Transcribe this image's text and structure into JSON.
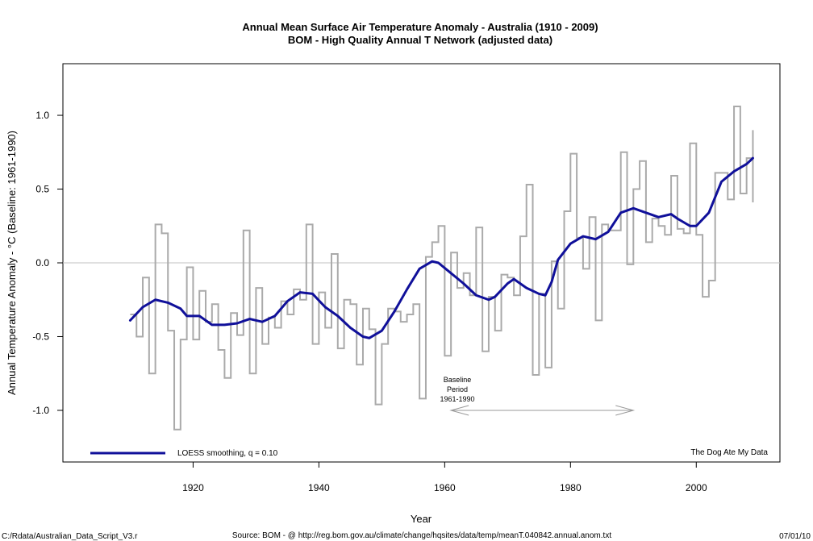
{
  "chart_data": {
    "type": "line",
    "title": "Annual Mean Surface Air Temperature Anomaly - Australia (1910 - 2009)",
    "subtitle": "BOM - High Quality Annual T Network (adjusted data)",
    "xlabel": "Year",
    "ylabel": "Annual Temperature Anomaly - °C (Baseline: 1961-1990)",
    "xlim": [
      1899.3,
      2013.3
    ],
    "ylim": [
      -1.35,
      1.35
    ],
    "x_ticks": [
      1920,
      1940,
      1960,
      1980,
      2000
    ],
    "y_ticks": [
      -1.0,
      -0.5,
      0.0,
      0.5,
      1.0
    ],
    "x_tick_labels": [
      "1920",
      "1940",
      "1960",
      "1980",
      "2000"
    ],
    "y_tick_labels": [
      "-1.0",
      "-0.5",
      "0.0",
      "0.5",
      "1.0"
    ],
    "grid": false,
    "reference_line_y": 0.0,
    "series": [
      {
        "style": "step",
        "color": "#aaaaaa",
        "x": [
          1910,
          1911,
          1912,
          1913,
          1914,
          1915,
          1916,
          1917,
          1918,
          1919,
          1920,
          1921,
          1922,
          1923,
          1924,
          1925,
          1926,
          1927,
          1928,
          1929,
          1930,
          1931,
          1932,
          1933,
          1934,
          1935,
          1936,
          1937,
          1938,
          1939,
          1940,
          1941,
          1942,
          1943,
          1944,
          1945,
          1946,
          1947,
          1948,
          1949,
          1950,
          1951,
          1952,
          1953,
          1954,
          1955,
          1956,
          1957,
          1958,
          1959,
          1960,
          1961,
          1962,
          1963,
          1964,
          1965,
          1966,
          1967,
          1968,
          1969,
          1970,
          1971,
          1972,
          1973,
          1974,
          1975,
          1976,
          1977,
          1978,
          1979,
          1980,
          1981,
          1982,
          1983,
          1984,
          1985,
          1986,
          1987,
          1988,
          1989,
          1990,
          1991,
          1992,
          1993,
          1994,
          1995,
          1996,
          1997,
          1998,
          1999,
          2000,
          2001,
          2002,
          2003,
          2004,
          2005,
          2006,
          2007,
          2008,
          2009
        ],
        "values": [
          -0.35,
          -0.5,
          -0.1,
          -0.75,
          0.26,
          0.2,
          -0.46,
          -1.13,
          -0.52,
          -0.03,
          -0.52,
          -0.19,
          -0.4,
          -0.28,
          -0.59,
          -0.78,
          -0.34,
          -0.49,
          0.22,
          -0.75,
          -0.17,
          -0.55,
          -0.37,
          -0.44,
          -0.26,
          -0.35,
          -0.18,
          -0.25,
          0.26,
          -0.55,
          -0.2,
          -0.44,
          0.06,
          -0.58,
          -0.25,
          -0.28,
          -0.69,
          -0.31,
          -0.45,
          -0.96,
          -0.55,
          -0.31,
          -0.33,
          -0.4,
          -0.35,
          -0.28,
          -0.92,
          0.04,
          0.14,
          0.25,
          -0.63,
          0.07,
          -0.17,
          -0.07,
          -0.22,
          0.24,
          -0.6,
          -0.23,
          -0.46,
          -0.08,
          -0.1,
          -0.22,
          0.18,
          0.53,
          -0.76,
          -0.21,
          -0.71,
          0.01,
          -0.31,
          0.35,
          0.74,
          0.17,
          -0.04,
          0.31,
          -0.39,
          0.26,
          0.22,
          0.22,
          0.75,
          -0.01,
          0.5,
          0.69,
          0.14,
          0.3,
          0.25,
          0.19,
          0.59,
          0.23,
          0.2,
          0.81,
          0.19,
          -0.23,
          -0.12,
          0.61,
          0.61,
          0.43,
          1.06,
          0.47,
          0.71,
          0.41
        ],
        "end_value": 0.9
      },
      {
        "name": "LOESS smoothing, q = 0.10",
        "style": "line",
        "color": "#10109a",
        "x": [
          1910,
          1912,
          1914,
          1916,
          1918,
          1919,
          1921,
          1923,
          1925,
          1927,
          1929,
          1931,
          1933,
          1935,
          1937,
          1939,
          1941,
          1943,
          1945,
          1947,
          1948,
          1950,
          1952,
          1954,
          1956,
          1958,
          1959,
          1961,
          1963,
          1965,
          1967,
          1968,
          1970,
          1971,
          1973,
          1975,
          1976,
          1977,
          1978,
          1980,
          1982,
          1983,
          1984,
          1986,
          1988,
          1990,
          1992,
          1994,
          1996,
          1997,
          1999,
          2000,
          2002,
          2004,
          2006,
          2008,
          2009
        ],
        "values": [
          -0.39,
          -0.3,
          -0.25,
          -0.27,
          -0.31,
          -0.36,
          -0.36,
          -0.42,
          -0.42,
          -0.41,
          -0.38,
          -0.4,
          -0.36,
          -0.26,
          -0.2,
          -0.21,
          -0.3,
          -0.36,
          -0.44,
          -0.5,
          -0.51,
          -0.46,
          -0.33,
          -0.18,
          -0.04,
          0.01,
          0.0,
          -0.07,
          -0.14,
          -0.22,
          -0.25,
          -0.23,
          -0.14,
          -0.11,
          -0.17,
          -0.21,
          -0.22,
          -0.13,
          0.02,
          0.13,
          0.18,
          0.17,
          0.16,
          0.21,
          0.34,
          0.37,
          0.34,
          0.31,
          0.33,
          0.3,
          0.25,
          0.25,
          0.34,
          0.55,
          0.62,
          0.67,
          0.71
        ]
      }
    ],
    "legend": {
      "placement": "bottom-left",
      "entry": "LOESS smoothing, q = 0.10"
    },
    "annotations": {
      "baseline_lines": [
        "Baseline",
        "Period",
        "1961-1990"
      ],
      "baseline_arrow": {
        "from_year": 1961,
        "to_year": 1990,
        "y": -1.0
      },
      "watermark": "The Dog Ate My Data"
    }
  },
  "footer": {
    "script_path": "C:/Rdata/Australian_Data_Script_V3.r",
    "source": "Source: BOM - @ http://reg.bom.gov.au/climate/change/hqsites/data/temp/meanT.040842.annual.anom.txt",
    "date": "07/01/10"
  },
  "colors": {
    "annual_series": "#aaaaaa",
    "loess": "#10109a",
    "zero_line": "#c0c0c0",
    "arrow": "#999999"
  }
}
